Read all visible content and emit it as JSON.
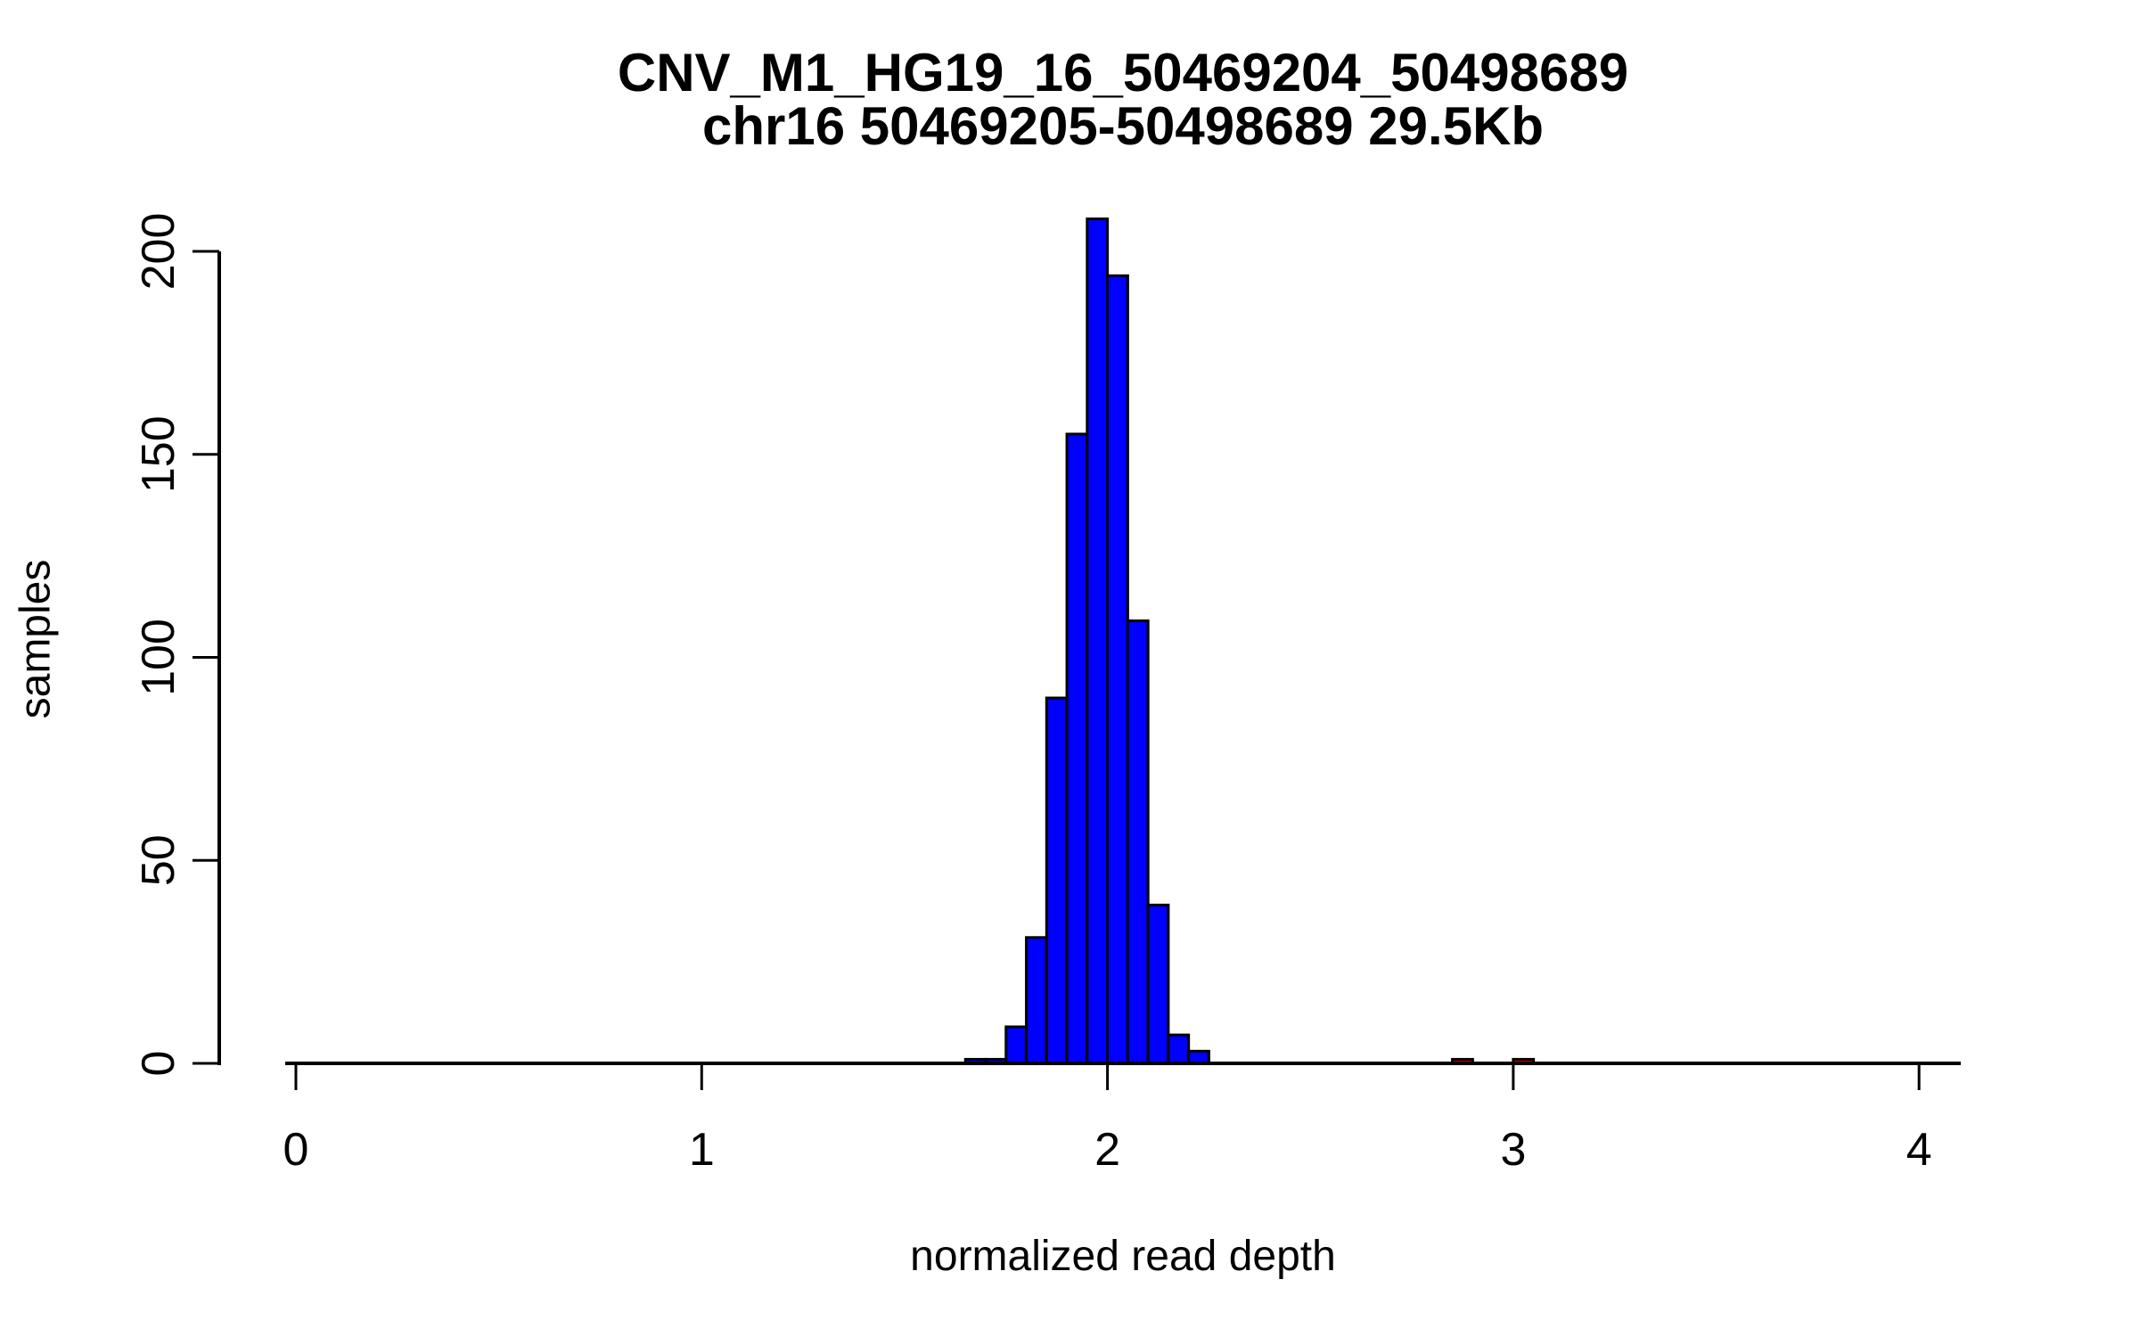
{
  "figure": {
    "title_line1": "CNV_M1_HG19_16_50469204_50498689",
    "title_line2": "chr16 50469205-50498689 29.5Kb"
  },
  "chart_data": {
    "type": "bar",
    "subtype": "histogram",
    "title": "CNV_M1_HG19_16_50469204_50498689",
    "subtitle": "chr16 50469205-50498689 29.5Kb",
    "xlabel": "normalized read depth",
    "ylabel": "samples",
    "xlim": [
      -0.05,
      4.15
    ],
    "ylim": [
      0,
      208
    ],
    "x_ticks": [
      0,
      1,
      2,
      3,
      4
    ],
    "y_ticks": [
      0,
      50,
      100,
      150,
      200
    ],
    "grid": false,
    "legend": false,
    "bin_width": 0.05,
    "colors": {
      "bar_fill": "#0000FF",
      "outlier_fill": "#CD0000",
      "bar_border": "#000000",
      "axis": "#000000",
      "background": "#FFFFFF"
    },
    "bars": [
      {
        "x0": 1.65,
        "x1": 1.7,
        "count": 1,
        "fill": "#0000FF"
      },
      {
        "x0": 1.7,
        "x1": 1.75,
        "count": 1,
        "fill": "#0000FF"
      },
      {
        "x0": 1.75,
        "x1": 1.8,
        "count": 9,
        "fill": "#0000FF"
      },
      {
        "x0": 1.8,
        "x1": 1.85,
        "count": 31,
        "fill": "#0000FF"
      },
      {
        "x0": 1.85,
        "x1": 1.9,
        "count": 90,
        "fill": "#0000FF"
      },
      {
        "x0": 1.9,
        "x1": 1.95,
        "count": 155,
        "fill": "#0000FF"
      },
      {
        "x0": 1.95,
        "x1": 2.0,
        "count": 208,
        "fill": "#0000FF"
      },
      {
        "x0": 2.0,
        "x1": 2.05,
        "count": 194,
        "fill": "#0000FF"
      },
      {
        "x0": 2.05,
        "x1": 2.1,
        "count": 109,
        "fill": "#0000FF"
      },
      {
        "x0": 2.1,
        "x1": 2.15,
        "count": 39,
        "fill": "#0000FF"
      },
      {
        "x0": 2.15,
        "x1": 2.2,
        "count": 7,
        "fill": "#0000FF"
      },
      {
        "x0": 2.2,
        "x1": 2.25,
        "count": 3,
        "fill": "#0000FF"
      },
      {
        "x0": 2.85,
        "x1": 2.9,
        "count": 1,
        "fill": "#CD0000"
      },
      {
        "x0": 3.0,
        "x1": 3.05,
        "count": 1,
        "fill": "#CD0000"
      }
    ]
  }
}
